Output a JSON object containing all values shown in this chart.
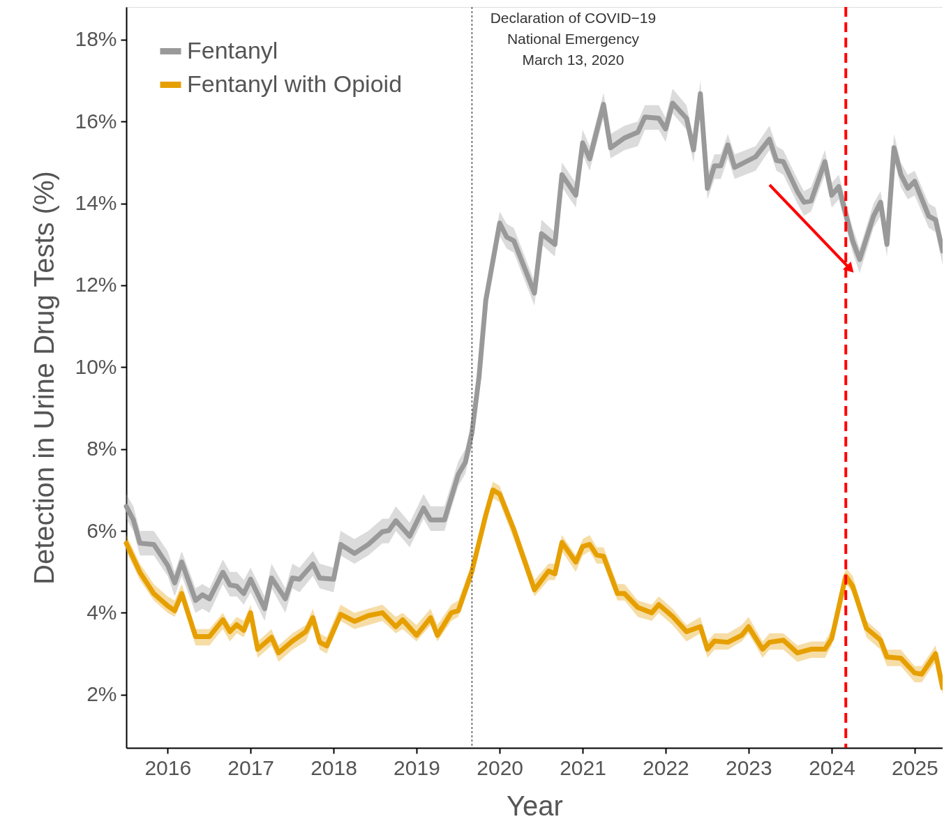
{
  "chart_data": {
    "type": "line",
    "xlabel": "Year",
    "ylabel": "Detection in Urine Drug Tests (%)",
    "xlim": [
      "2016-01",
      "2025-11"
    ],
    "xticks": [
      {
        "value": "2016-07",
        "label": "2016"
      },
      {
        "value": "2017-07",
        "label": "2017"
      },
      {
        "value": "2018-07",
        "label": "2018"
      },
      {
        "value": "2019-07",
        "label": "2019"
      },
      {
        "value": "2020-07",
        "label": "2020"
      },
      {
        "value": "2021-07",
        "label": "2021"
      },
      {
        "value": "2022-07",
        "label": "2022"
      },
      {
        "value": "2023-07",
        "label": "2023"
      },
      {
        "value": "2024-07",
        "label": "2024"
      },
      {
        "value": "2025-07",
        "label": "2025"
      }
    ],
    "ylim": [
      0.7,
      18.8
    ],
    "yticks": [
      {
        "value": 2,
        "label": "2%"
      },
      {
        "value": 4,
        "label": "4%"
      },
      {
        "value": 6,
        "label": "6%"
      },
      {
        "value": 8,
        "label": "8%"
      },
      {
        "value": 10,
        "label": "10%"
      },
      {
        "value": 12,
        "label": "12%"
      },
      {
        "value": 14,
        "label": "14%"
      },
      {
        "value": 16,
        "label": "16%"
      },
      {
        "value": 18,
        "label": "18%"
      }
    ],
    "grid": false,
    "legend": "top left",
    "marker": "none",
    "line_style": "solid",
    "ref_lines": [
      {
        "axis": "x",
        "value": "2020-03",
        "label": "Declaration of COVID−19\nNational Emergency\nMarch 13, 2020",
        "color": "#555555",
        "line_style": "dotted"
      },
      {
        "axis": "x",
        "value": "2024-09",
        "color": "#ff0000",
        "line_style": "dashed"
      }
    ],
    "series": [
      {
        "name": "Fentanyl",
        "color": "#999999",
        "x": [
          "2016-01",
          "2016-02",
          "2016-03",
          "2016-05",
          "2016-07",
          "2016-08",
          "2016-09",
          "2016-11",
          "2016-12",
          "2017-01",
          "2017-03",
          "2017-04",
          "2017-05",
          "2017-06",
          "2017-07",
          "2017-09",
          "2017-10",
          "2017-12",
          "2018-01",
          "2018-02",
          "2018-04",
          "2018-05",
          "2018-07",
          "2018-08",
          "2018-10",
          "2018-12",
          "2019-02",
          "2019-03",
          "2019-04",
          "2019-06",
          "2019-08",
          "2019-09",
          "2019-11",
          "2020-01",
          "2020-02",
          "2020-03",
          "2020-04",
          "2020-05",
          "2020-07",
          "2020-08",
          "2020-09",
          "2020-12",
          "2021-01",
          "2021-03",
          "2021-04",
          "2021-06",
          "2021-07",
          "2021-08",
          "2021-10",
          "2021-11",
          "2022-01",
          "2022-03",
          "2022-04",
          "2022-06",
          "2022-07",
          "2022-08",
          "2022-10",
          "2022-11",
          "2022-12",
          "2023-01",
          "2023-02",
          "2023-03",
          "2023-04",
          "2023-05",
          "2023-08",
          "2023-10",
          "2023-11",
          "2023-12",
          "2024-02",
          "2024-03",
          "2024-04",
          "2024-06",
          "2024-07",
          "2024-08",
          "2024-10",
          "2024-11",
          "2025-01",
          "2025-02",
          "2025-03",
          "2025-04",
          "2025-05",
          "2025-06",
          "2025-07",
          "2025-09",
          "2025-10",
          "2025-11"
        ],
        "values": [
          6.6,
          6.27,
          5.7,
          5.67,
          5.16,
          4.73,
          5.24,
          4.3,
          4.44,
          4.34,
          4.99,
          4.68,
          4.65,
          4.47,
          4.82,
          4.1,
          4.85,
          4.34,
          4.85,
          4.82,
          5.19,
          4.85,
          4.82,
          5.67,
          5.45,
          5.67,
          5.98,
          6.01,
          6.25,
          5.87,
          6.56,
          6.27,
          6.27,
          7.38,
          7.68,
          8.4,
          9.76,
          11.64,
          13.52,
          13.18,
          13.09,
          11.81,
          13.26,
          13.0,
          14.7,
          14.2,
          15.48,
          15.09,
          16.42,
          15.36,
          15.6,
          15.74,
          16.11,
          16.08,
          15.82,
          16.45,
          16.08,
          15.31,
          16.68,
          14.37,
          14.92,
          14.92,
          15.43,
          14.88,
          15.14,
          15.57,
          15.05,
          15.02,
          14.29,
          14.03,
          14.06,
          15.02,
          14.2,
          14.41,
          13.09,
          12.63,
          13.69,
          14.03,
          13.0,
          15.36,
          14.71,
          14.37,
          14.54,
          13.69,
          13.6,
          12.84
        ],
        "lower": [
          6.3,
          6.0,
          5.4,
          5.4,
          4.9,
          4.4,
          4.9,
          4.0,
          4.1,
          4.0,
          4.7,
          4.4,
          4.4,
          4.2,
          4.5,
          3.8,
          4.6,
          4.0,
          4.6,
          4.5,
          4.9,
          4.6,
          4.5,
          5.4,
          5.2,
          5.4,
          5.7,
          5.7,
          6.0,
          5.6,
          6.3,
          6.0,
          6.0,
          7.1,
          7.4,
          8.1,
          9.5,
          11.3,
          13.2,
          12.9,
          12.8,
          11.5,
          13.0,
          12.7,
          14.4,
          13.9,
          15.2,
          14.8,
          16.1,
          15.1,
          15.3,
          15.4,
          15.8,
          15.8,
          15.5,
          16.2,
          15.8,
          15.0,
          16.4,
          14.1,
          14.6,
          14.6,
          15.1,
          14.6,
          14.8,
          15.3,
          14.8,
          14.7,
          14.0,
          13.7,
          13.8,
          14.7,
          13.9,
          14.1,
          12.8,
          12.3,
          13.4,
          13.7,
          12.7,
          15.1,
          14.4,
          14.1,
          14.2,
          13.4,
          13.3,
          12.5
        ],
        "upper": [
          6.9,
          6.6,
          6.0,
          6.0,
          5.5,
          5.0,
          5.5,
          4.6,
          4.7,
          4.6,
          5.3,
          5.0,
          5.0,
          4.8,
          5.1,
          4.4,
          5.2,
          4.6,
          5.2,
          5.1,
          5.5,
          5.2,
          5.1,
          6.0,
          5.8,
          6.0,
          6.3,
          6.3,
          6.6,
          6.2,
          6.9,
          6.6,
          6.6,
          7.7,
          8.0,
          8.7,
          10.1,
          11.9,
          13.8,
          13.5,
          13.4,
          12.1,
          13.6,
          13.3,
          15.0,
          14.5,
          15.8,
          15.4,
          16.7,
          15.7,
          15.9,
          16.0,
          16.4,
          16.4,
          16.1,
          16.8,
          16.4,
          15.6,
          17.0,
          14.7,
          15.2,
          15.2,
          15.7,
          15.2,
          15.4,
          15.9,
          15.4,
          15.3,
          14.6,
          14.3,
          14.4,
          15.3,
          14.5,
          14.7,
          13.4,
          12.9,
          14.0,
          14.3,
          13.3,
          15.7,
          15.0,
          14.7,
          14.8,
          14.0,
          13.9,
          13.1
        ]
      },
      {
        "name": "Fentanyl with Opioid",
        "color": "#e69f00",
        "x": [
          "2016-01",
          "2016-03",
          "2016-05",
          "2016-07",
          "2016-08",
          "2016-09",
          "2016-11",
          "2017-01",
          "2017-03",
          "2017-04",
          "2017-05",
          "2017-06",
          "2017-07",
          "2017-08",
          "2017-10",
          "2017-11",
          "2018-01",
          "2018-03",
          "2018-04",
          "2018-05",
          "2018-06",
          "2018-08",
          "2018-10",
          "2018-12",
          "2019-02",
          "2019-04",
          "2019-05",
          "2019-07",
          "2019-09",
          "2019-10",
          "2019-12",
          "2020-01",
          "2020-03",
          "2020-05",
          "2020-06",
          "2020-07",
          "2020-09",
          "2020-12",
          "2021-02",
          "2021-03",
          "2021-04",
          "2021-06",
          "2021-07",
          "2021-08",
          "2021-09",
          "2021-10",
          "2021-12",
          "2022-01",
          "2022-03",
          "2022-05",
          "2022-06",
          "2022-08",
          "2022-10",
          "2022-12",
          "2023-01",
          "2023-02",
          "2023-04",
          "2023-06",
          "2023-07",
          "2023-09",
          "2023-10",
          "2023-12",
          "2024-02",
          "2024-04",
          "2024-06",
          "2024-07",
          "2024-09",
          "2024-10",
          "2024-12",
          "2025-02",
          "2025-03",
          "2025-05",
          "2025-07",
          "2025-08",
          "2025-10",
          "2025-11"
        ],
        "values": [
          5.7,
          4.99,
          4.47,
          4.17,
          4.05,
          4.47,
          3.42,
          3.42,
          3.83,
          3.54,
          3.71,
          3.57,
          4.0,
          3.11,
          3.4,
          3.02,
          3.31,
          3.54,
          3.88,
          3.28,
          3.19,
          3.96,
          3.79,
          3.93,
          4.0,
          3.66,
          3.83,
          3.45,
          3.88,
          3.45,
          4.0,
          4.05,
          5.02,
          6.39,
          7.0,
          6.9,
          6.04,
          4.56,
          5.02,
          4.95,
          5.72,
          5.24,
          5.62,
          5.67,
          5.41,
          5.38,
          4.47,
          4.47,
          4.13,
          4.0,
          4.2,
          3.91,
          3.54,
          3.66,
          3.11,
          3.31,
          3.28,
          3.45,
          3.66,
          3.11,
          3.28,
          3.33,
          3.02,
          3.11,
          3.11,
          3.37,
          4.9,
          4.65,
          3.62,
          3.33,
          2.92,
          2.89,
          2.53,
          2.5,
          3.0,
          2.17
        ],
        "lower": [
          5.5,
          4.8,
          4.3,
          4.0,
          3.9,
          4.3,
          3.2,
          3.2,
          3.6,
          3.3,
          3.5,
          3.4,
          3.8,
          2.9,
          3.2,
          2.8,
          3.1,
          3.3,
          3.7,
          3.1,
          3.0,
          3.8,
          3.6,
          3.7,
          3.8,
          3.5,
          3.6,
          3.3,
          3.7,
          3.3,
          3.8,
          3.9,
          4.8,
          6.2,
          6.8,
          6.7,
          5.8,
          4.4,
          4.8,
          4.8,
          5.5,
          5.0,
          5.4,
          5.5,
          5.2,
          5.2,
          4.3,
          4.3,
          3.9,
          3.8,
          4.0,
          3.7,
          3.3,
          3.5,
          2.9,
          3.1,
          3.1,
          3.3,
          3.5,
          2.9,
          3.1,
          3.1,
          2.8,
          2.9,
          2.9,
          3.2,
          4.7,
          4.5,
          3.4,
          3.1,
          2.7,
          2.7,
          2.3,
          2.3,
          2.8,
          2.0
        ],
        "upper": [
          5.9,
          5.2,
          4.7,
          4.4,
          4.3,
          4.7,
          3.6,
          3.6,
          4.0,
          3.7,
          3.9,
          3.8,
          4.2,
          3.3,
          3.6,
          3.2,
          3.5,
          3.7,
          4.1,
          3.5,
          3.4,
          4.2,
          4.0,
          4.1,
          4.2,
          3.9,
          4.0,
          3.7,
          4.1,
          3.7,
          4.2,
          4.3,
          5.2,
          6.6,
          7.2,
          7.1,
          6.2,
          4.8,
          5.2,
          5.2,
          5.9,
          5.4,
          5.8,
          5.9,
          5.6,
          5.6,
          4.7,
          4.7,
          4.3,
          4.2,
          4.4,
          4.1,
          3.7,
          3.9,
          3.3,
          3.5,
          3.5,
          3.7,
          3.9,
          3.3,
          3.5,
          3.5,
          3.2,
          3.3,
          3.3,
          3.6,
          5.1,
          4.9,
          3.8,
          3.5,
          3.1,
          3.1,
          2.7,
          2.7,
          3.2,
          2.4
        ]
      }
    ]
  }
}
